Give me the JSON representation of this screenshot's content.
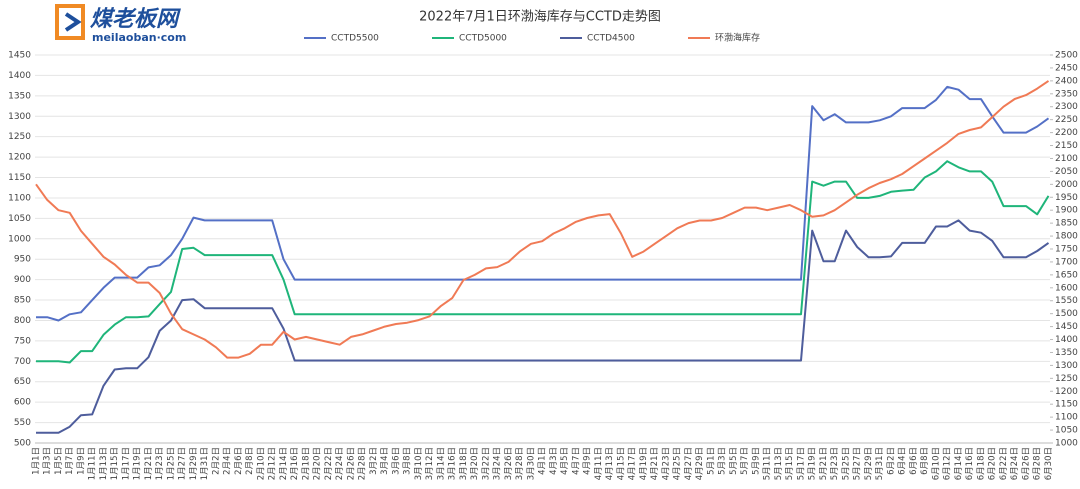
{
  "logo": {
    "name": "煤老板网",
    "site": "meilaoban·com"
  },
  "chart_data": {
    "type": "line",
    "title": "2022年7月1日环渤海库存与CCTD走势图",
    "categories": [
      "1月1日",
      "1月3日",
      "1月5日",
      "1月7日",
      "1月9日",
      "1月11日",
      "1月13日",
      "1月15日",
      "1月17日",
      "1月19日",
      "1月21日",
      "1月23日",
      "1月25日",
      "1月27日",
      "1月29日",
      "1月31日",
      "2月2日",
      "2月4日",
      "2月6日",
      "2月8日",
      "2月10日",
      "2月12日",
      "2月14日",
      "2月16日",
      "2月18日",
      "2月20日",
      "2月22日",
      "2月24日",
      "2月26日",
      "2月28日",
      "3月2日",
      "3月4日",
      "3月6日",
      "3月8日",
      "3月10日",
      "3月12日",
      "3月14日",
      "3月16日",
      "3月18日",
      "3月20日",
      "3月22日",
      "3月24日",
      "3月26日",
      "3月28日",
      "3月30日",
      "4月1日",
      "4月3日",
      "4月5日",
      "4月7日",
      "4月9日",
      "4月11日",
      "4月13日",
      "4月15日",
      "4月17日",
      "4月19日",
      "4月21日",
      "4月23日",
      "4月25日",
      "4月27日",
      "4月29日",
      "5月1日",
      "5月3日",
      "5月5日",
      "5月7日",
      "5月9日",
      "5月11日",
      "5月13日",
      "5月15日",
      "5月17日",
      "5月19日",
      "5月21日",
      "5月23日",
      "5月25日",
      "5月27日",
      "5月29日",
      "5月31日",
      "6月2日",
      "6月4日",
      "6月6日",
      "6月8日",
      "6月10日",
      "6月12日",
      "6月14日",
      "6月16日",
      "6月18日",
      "6月20日",
      "6月22日",
      "6月24日",
      "6月26日",
      "6月28日",
      "6月30日"
    ],
    "series": [
      {
        "name": "CCTD5500",
        "color": "#5470c6",
        "values": [
          808,
          808,
          800,
          815,
          820,
          850,
          880,
          905,
          905,
          905,
          930,
          935,
          960,
          1000,
          1052,
          1045,
          1045,
          1045,
          1045,
          1045,
          1045,
          1045,
          950,
          900,
          900,
          900,
          900,
          900,
          900,
          900,
          900,
          900,
          900,
          900,
          900,
          900,
          900,
          900,
          900,
          900,
          900,
          900,
          900,
          900,
          900,
          900,
          900,
          900,
          900,
          900,
          900,
          900,
          900,
          900,
          900,
          900,
          900,
          900,
          900,
          900,
          900,
          900,
          900,
          900,
          900,
          900,
          900,
          900,
          900,
          1325,
          1290,
          1305,
          1285,
          1285,
          1285,
          1290,
          1300,
          1320,
          1320,
          1320,
          1340,
          1372,
          1365,
          1342,
          1342,
          1300,
          1260,
          1260,
          1260,
          1275,
          1295
        ]
      },
      {
        "name": "CCTD5000",
        "color": "#1fb57a",
        "values": [
          700,
          700,
          700,
          697,
          725,
          725,
          765,
          790,
          808,
          808,
          810,
          840,
          870,
          975,
          978,
          960,
          960,
          960,
          960,
          960,
          960,
          960,
          900,
          815,
          815,
          815,
          815,
          815,
          815,
          815,
          815,
          815,
          815,
          815,
          815,
          815,
          815,
          815,
          815,
          815,
          815,
          815,
          815,
          815,
          815,
          815,
          815,
          815,
          815,
          815,
          815,
          815,
          815,
          815,
          815,
          815,
          815,
          815,
          815,
          815,
          815,
          815,
          815,
          815,
          815,
          815,
          815,
          815,
          815,
          1140,
          1130,
          1140,
          1140,
          1100,
          1100,
          1105,
          1115,
          1118,
          1120,
          1150,
          1165,
          1190,
          1175,
          1165,
          1165,
          1140,
          1080,
          1080,
          1080,
          1060,
          1105
        ]
      },
      {
        "name": "CCTD4500",
        "color": "#4e5d9c",
        "values": [
          525,
          525,
          525,
          540,
          568,
          570,
          640,
          680,
          683,
          683,
          710,
          775,
          800,
          850,
          852,
          830,
          830,
          830,
          830,
          830,
          830,
          830,
          780,
          702,
          702,
          702,
          702,
          702,
          702,
          702,
          702,
          702,
          702,
          702,
          702,
          702,
          702,
          702,
          702,
          702,
          702,
          702,
          702,
          702,
          702,
          702,
          702,
          702,
          702,
          702,
          702,
          702,
          702,
          702,
          702,
          702,
          702,
          702,
          702,
          702,
          702,
          702,
          702,
          702,
          702,
          702,
          702,
          702,
          702,
          1020,
          945,
          945,
          1020,
          980,
          955,
          955,
          957,
          990,
          990,
          990,
          1030,
          1030,
          1045,
          1020,
          1015,
          995,
          955,
          955,
          955,
          970,
          990
        ]
      },
      {
        "name": "环渤海库存",
        "color": "#f07a55",
        "axis": "y2",
        "values": [
          2000,
          1940,
          1900,
          1890,
          1820,
          1770,
          1720,
          1690,
          1650,
          1620,
          1620,
          1580,
          1500,
          1440,
          1420,
          1400,
          1370,
          1330,
          1330,
          1345,
          1380,
          1380,
          1430,
          1400,
          1410,
          1400,
          1390,
          1380,
          1410,
          1420,
          1435,
          1450,
          1460,
          1465,
          1475,
          1490,
          1530,
          1560,
          1630,
          1650,
          1675,
          1680,
          1700,
          1740,
          1770,
          1780,
          1810,
          1830,
          1855,
          1870,
          1880,
          1885,
          1810,
          1720,
          1740,
          1770,
          1800,
          1830,
          1850,
          1860,
          1860,
          1870,
          1890,
          1910,
          1910,
          1900,
          1910,
          1920,
          1900,
          1875,
          1880,
          1900,
          1930,
          1960,
          1985,
          2005,
          2020,
          2040,
          2070,
          2100,
          2130,
          2160,
          2195,
          2210,
          2220,
          2260,
          2300,
          2330,
          2345,
          2370,
          2400
        ]
      }
    ],
    "ylim": [
      500,
      1450
    ],
    "yticks": [
      500,
      550,
      600,
      650,
      700,
      750,
      800,
      850,
      900,
      950,
      1000,
      1050,
      1100,
      1150,
      1200,
      1250,
      1300,
      1350,
      1400,
      1450
    ],
    "y2lim": [
      1000,
      2500
    ],
    "y2ticks": [
      1000,
      1050,
      1100,
      1150,
      1200,
      1250,
      1300,
      1350,
      1400,
      1450,
      1500,
      1550,
      1600,
      1650,
      1700,
      1750,
      1800,
      1850,
      1900,
      1950,
      2000,
      2050,
      2100,
      2150,
      2200,
      2250,
      2300,
      2350,
      2400,
      2450,
      2500
    ],
    "grid": true
  }
}
